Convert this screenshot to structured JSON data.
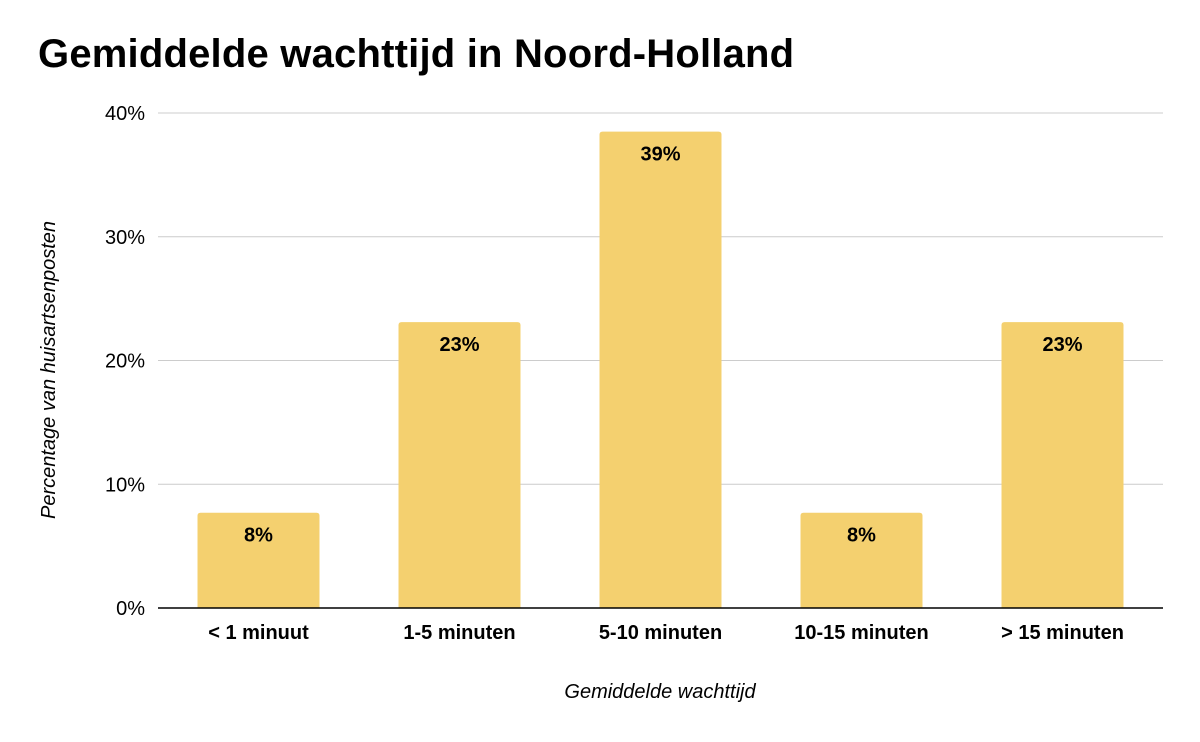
{
  "chart_data": {
    "type": "bar",
    "title": "Gemiddelde wachttijd in Noord-Holland",
    "xlabel": "Gemiddelde wachttijd",
    "ylabel": "Percentage van huisartsenposten",
    "categories": [
      "< 1 minuut",
      "1-5 minuten",
      "5-10 minuten",
      "10-15 minuten",
      "> 15 minuten"
    ],
    "values": [
      7.7,
      23.1,
      38.5,
      7.7,
      23.1
    ],
    "data_labels": [
      "8%",
      "23%",
      "39%",
      "8%",
      "23%"
    ],
    "ylim": [
      0,
      40
    ],
    "yticks": [
      0,
      10,
      20,
      30,
      40
    ],
    "ytick_labels": [
      "0%",
      "10%",
      "20%",
      "30%",
      "40%"
    ],
    "bar_color": "#f4d06f",
    "grid": true,
    "legend": "none"
  }
}
